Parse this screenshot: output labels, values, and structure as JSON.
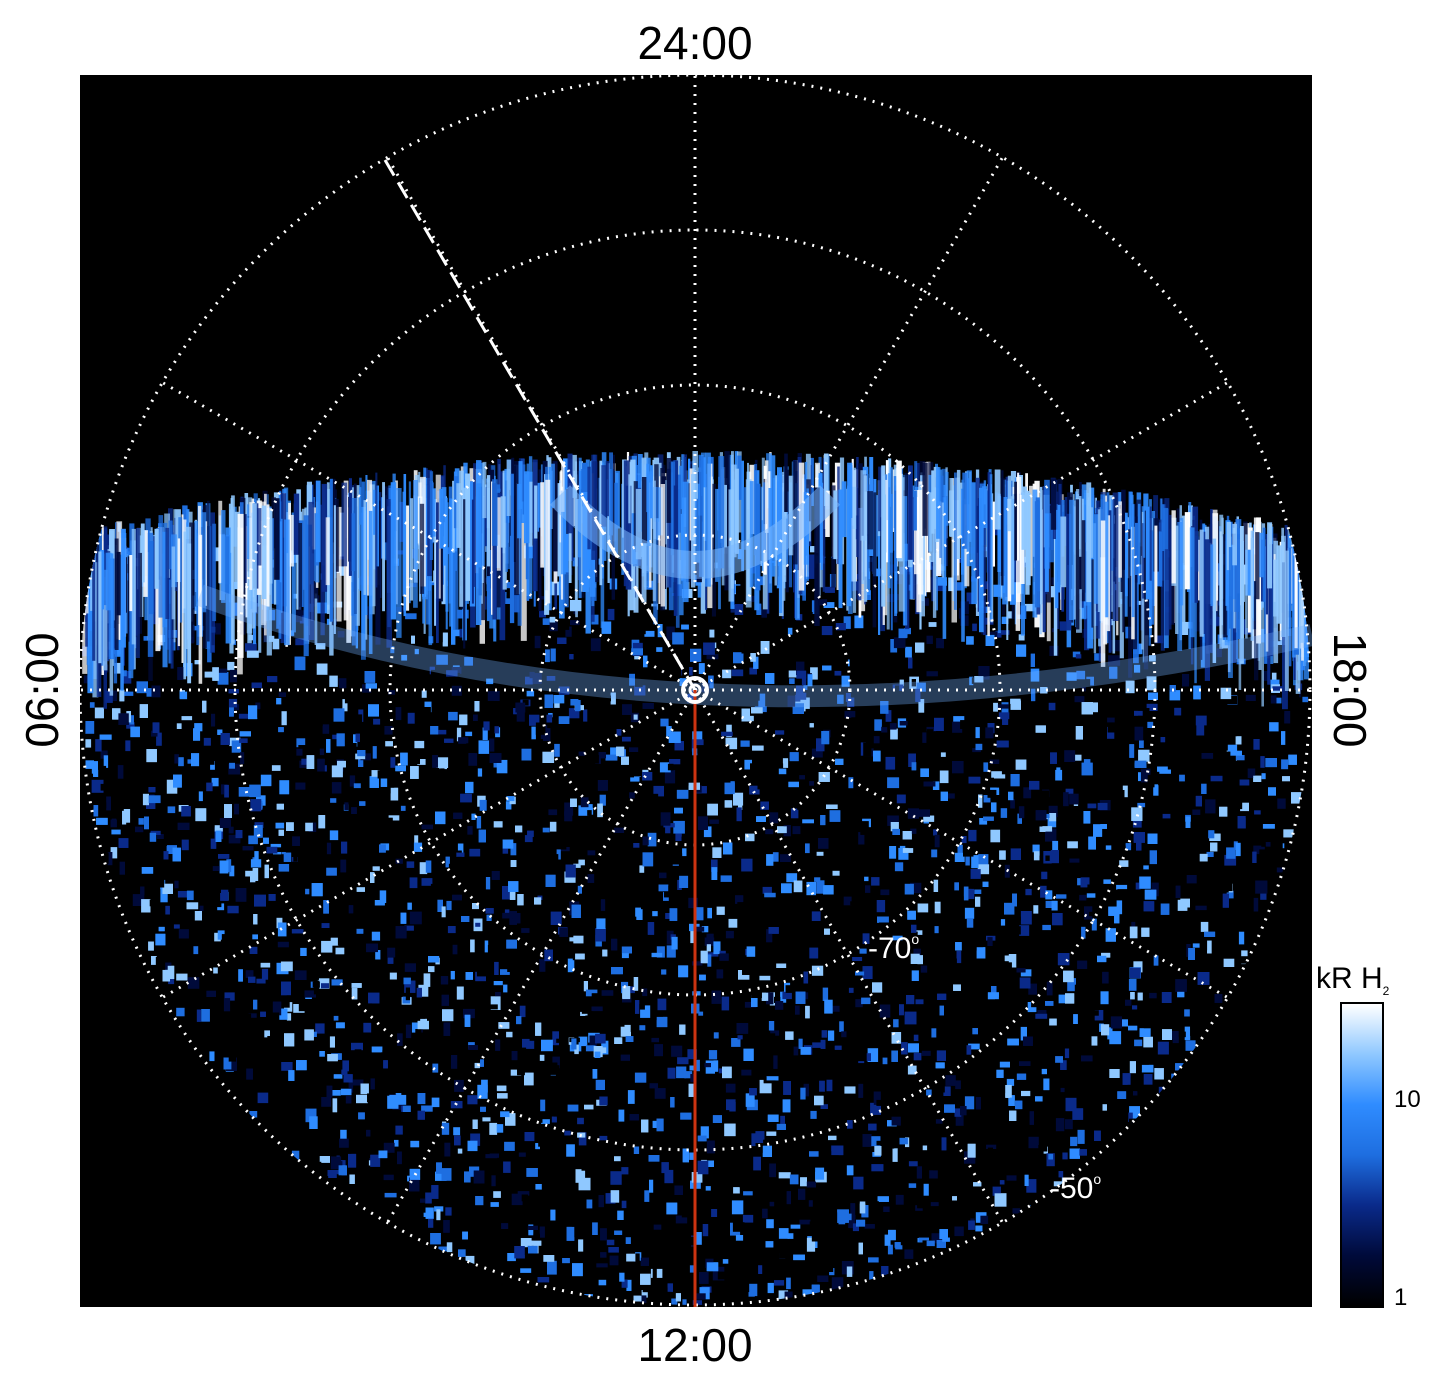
{
  "local_time_labels": {
    "top": "24:00",
    "bottom": "12:00",
    "left": "06:00",
    "right": "18:00"
  },
  "latitude_labels": {
    "lat70": "-70",
    "lat50": "-50",
    "degree_symbol": "o"
  },
  "colorbar": {
    "title_main": "kR H",
    "title_sub": "2",
    "tick_10": "10",
    "tick_1": "1",
    "scale": "log",
    "colors": [
      "#000000",
      "#000a3a",
      "#0a2a8a",
      "#1e6ee0",
      "#2f8cff",
      "#8fc8ff",
      "#ffffff"
    ]
  },
  "colors": {
    "background": "#000000",
    "grid": "#ffffff",
    "meridian_line": "#cc3311",
    "aurora_bright": "#9fd4ff",
    "aurora_mid": "#2f8cff",
    "aurora_dark": "#0a2a8a"
  }
}
